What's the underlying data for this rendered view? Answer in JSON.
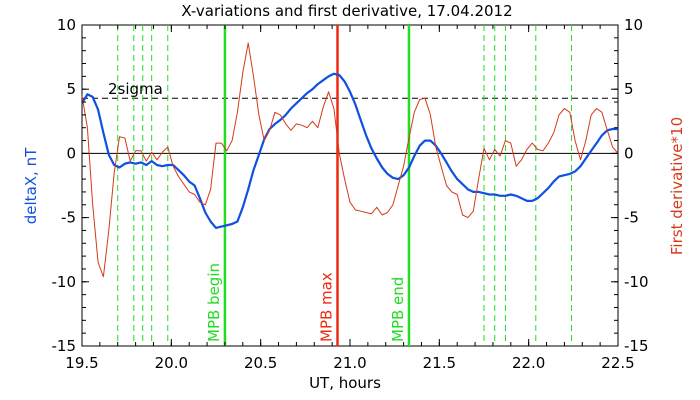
{
  "chart_data": {
    "type": "line",
    "title": "X-variations and first derivative, 17.04.2012",
    "xlabel": "UT, hours",
    "ylabel": "deltaX, nT",
    "ylabel_right": "First derivative*10",
    "xlim": [
      19.5,
      22.5
    ],
    "ylim": [
      -15,
      10
    ],
    "ylim_right": [
      -15,
      10
    ],
    "x_ticks": [
      19.5,
      20.0,
      20.5,
      21.0,
      21.5,
      22.0,
      22.5
    ],
    "x_tick_labels": [
      "19.5",
      "20.0",
      "20.5",
      "21.0",
      "21.5",
      "22.0",
      "22.5"
    ],
    "y_ticks": [
      10,
      5,
      0,
      -5,
      -10,
      -15
    ],
    "y_tick_labels": [
      "10",
      "5",
      "0",
      "-5",
      "-10",
      "-15"
    ],
    "y_right_ticks": [
      10,
      5,
      0,
      -5,
      -10,
      -15
    ],
    "y_right_tick_labels": [
      "10",
      "5",
      "0",
      "-5",
      "-10",
      "-15"
    ],
    "colors": {
      "deltaX": "#1050e0",
      "derivative": "#d43a1a",
      "mpb_bounds": "#22dd22",
      "mpb_max": "#ee2a10",
      "dashed_green": "#22dd22",
      "axis": "#000000"
    },
    "sigma_line": {
      "label": "2sigma",
      "value": 4.3
    },
    "zero_line": 0,
    "vertical_markers": [
      {
        "label": "MPB begin",
        "x": 20.3,
        "kind": "mpb_bounds"
      },
      {
        "label": "MPB max",
        "x": 20.93,
        "kind": "mpb_max"
      },
      {
        "label": "MPB end",
        "x": 21.33,
        "kind": "mpb_bounds"
      }
    ],
    "dashed_verticals_x": [
      19.7,
      19.79,
      19.84,
      19.89,
      19.98,
      21.75,
      21.81,
      21.87,
      22.04,
      22.24
    ],
    "series": [
      {
        "name": "deltaX, nT",
        "axis": "left",
        "x": [
          19.5,
          19.53,
          19.56,
          19.59,
          19.62,
          19.65,
          19.68,
          19.71,
          19.74,
          19.77,
          19.8,
          19.83,
          19.86,
          19.89,
          19.92,
          19.95,
          19.98,
          20.01,
          20.04,
          20.07,
          20.1,
          20.13,
          20.16,
          20.19,
          20.22,
          20.25,
          20.28,
          20.31,
          20.34,
          20.37,
          20.4,
          20.43,
          20.46,
          20.49,
          20.52,
          20.55,
          20.58,
          20.61,
          20.64,
          20.67,
          20.7,
          20.73,
          20.76,
          20.79,
          20.82,
          20.85,
          20.88,
          20.91,
          20.94,
          20.97,
          21.0,
          21.03,
          21.06,
          21.09,
          21.12,
          21.15,
          21.18,
          21.21,
          21.24,
          21.27,
          21.3,
          21.33,
          21.36,
          21.39,
          21.42,
          21.45,
          21.48,
          21.51,
          21.54,
          21.57,
          21.6,
          21.63,
          21.66,
          21.69,
          21.72,
          21.75,
          21.78,
          21.81,
          21.84,
          21.87,
          21.9,
          21.93,
          21.96,
          21.99,
          22.02,
          22.05,
          22.08,
          22.11,
          22.14,
          22.17,
          22.2,
          22.23,
          22.26,
          22.29,
          22.32,
          22.35,
          22.38,
          22.41,
          22.44,
          22.47,
          22.5
        ],
        "y": [
          3.9,
          4.6,
          4.4,
          3.4,
          1.6,
          -0.1,
          -0.9,
          -1.1,
          -0.8,
          -0.7,
          -0.8,
          -0.7,
          -0.9,
          -0.6,
          -0.9,
          -1.0,
          -0.9,
          -0.9,
          -1.3,
          -1.7,
          -2.2,
          -2.5,
          -3.5,
          -4.6,
          -5.3,
          -5.8,
          -5.7,
          -5.6,
          -5.5,
          -5.3,
          -4.2,
          -2.8,
          -1.3,
          -0.1,
          1.1,
          1.9,
          2.3,
          2.6,
          3.0,
          3.5,
          3.9,
          4.3,
          4.7,
          5.0,
          5.4,
          5.7,
          6.0,
          6.2,
          6.1,
          5.6,
          4.8,
          3.8,
          2.6,
          1.4,
          0.4,
          -0.4,
          -1.1,
          -1.6,
          -1.9,
          -2.0,
          -1.7,
          -1.1,
          -0.2,
          0.6,
          1.0,
          1.0,
          0.6,
          0.0,
          -0.7,
          -1.4,
          -2.0,
          -2.4,
          -2.8,
          -3.0,
          -3.0,
          -3.1,
          -3.2,
          -3.2,
          -3.3,
          -3.3,
          -3.2,
          -3.3,
          -3.5,
          -3.7,
          -3.7,
          -3.5,
          -3.1,
          -2.7,
          -2.2,
          -1.8,
          -1.7,
          -1.6,
          -1.4,
          -1.0,
          -0.4,
          0.2,
          0.8,
          1.4,
          1.8,
          1.9,
          1.9
        ]
      },
      {
        "name": "First derivative*10",
        "axis": "right",
        "x": [
          19.5,
          19.53,
          19.56,
          19.59,
          19.62,
          19.65,
          19.68,
          19.71,
          19.74,
          19.77,
          19.8,
          19.83,
          19.86,
          19.89,
          19.92,
          19.95,
          19.98,
          20.01,
          20.04,
          20.07,
          20.1,
          20.13,
          20.16,
          20.19,
          20.22,
          20.25,
          20.28,
          20.31,
          20.34,
          20.37,
          20.4,
          20.43,
          20.46,
          20.49,
          20.52,
          20.55,
          20.58,
          20.61,
          20.64,
          20.67,
          20.7,
          20.73,
          20.76,
          20.79,
          20.82,
          20.85,
          20.88,
          20.91,
          20.94,
          20.97,
          21.0,
          21.03,
          21.06,
          21.09,
          21.12,
          21.15,
          21.18,
          21.21,
          21.24,
          21.27,
          21.3,
          21.33,
          21.36,
          21.39,
          21.42,
          21.45,
          21.48,
          21.51,
          21.54,
          21.57,
          21.6,
          21.63,
          21.66,
          21.69,
          21.72,
          21.75,
          21.78,
          21.81,
          21.84,
          21.87,
          21.9,
          21.93,
          21.96,
          21.99,
          22.02,
          22.05,
          22.08,
          22.11,
          22.14,
          22.17,
          22.2,
          22.23,
          22.26,
          22.29,
          22.32,
          22.35,
          22.38,
          22.41,
          22.44,
          22.47,
          22.5
        ],
        "y": [
          4.5,
          2.0,
          -4.0,
          -8.5,
          -9.6,
          -6.0,
          -1.5,
          1.3,
          1.2,
          -0.6,
          0.2,
          0.2,
          -0.6,
          0.1,
          -0.5,
          0.1,
          0.5,
          -1.0,
          -1.8,
          -2.4,
          -3.0,
          -3.2,
          -3.8,
          -4.0,
          -2.8,
          0.8,
          0.8,
          0.2,
          1.0,
          3.2,
          6.3,
          8.6,
          6.0,
          3.0,
          1.0,
          1.8,
          3.2,
          3.0,
          2.3,
          1.8,
          2.3,
          2.2,
          2.0,
          2.5,
          2.0,
          3.6,
          4.8,
          3.5,
          0.0,
          -2.0,
          -3.8,
          -4.4,
          -4.5,
          -4.6,
          -4.7,
          -4.2,
          -4.8,
          -4.6,
          -4.0,
          -2.5,
          -1.0,
          1.2,
          3.2,
          4.2,
          4.3,
          3.0,
          0.5,
          -1.0,
          -2.5,
          -3.0,
          -3.2,
          -4.8,
          -5.0,
          -4.5,
          -2.0,
          0.4,
          -0.5,
          0.3,
          -0.2,
          1.0,
          0.8,
          -1.0,
          -0.5,
          0.3,
          0.8,
          0.3,
          0.2,
          0.8,
          1.6,
          3.0,
          3.5,
          3.2,
          1.0,
          -0.5,
          1.0,
          3.0,
          3.5,
          3.2,
          1.8,
          0.5,
          0.0
        ]
      }
    ]
  }
}
